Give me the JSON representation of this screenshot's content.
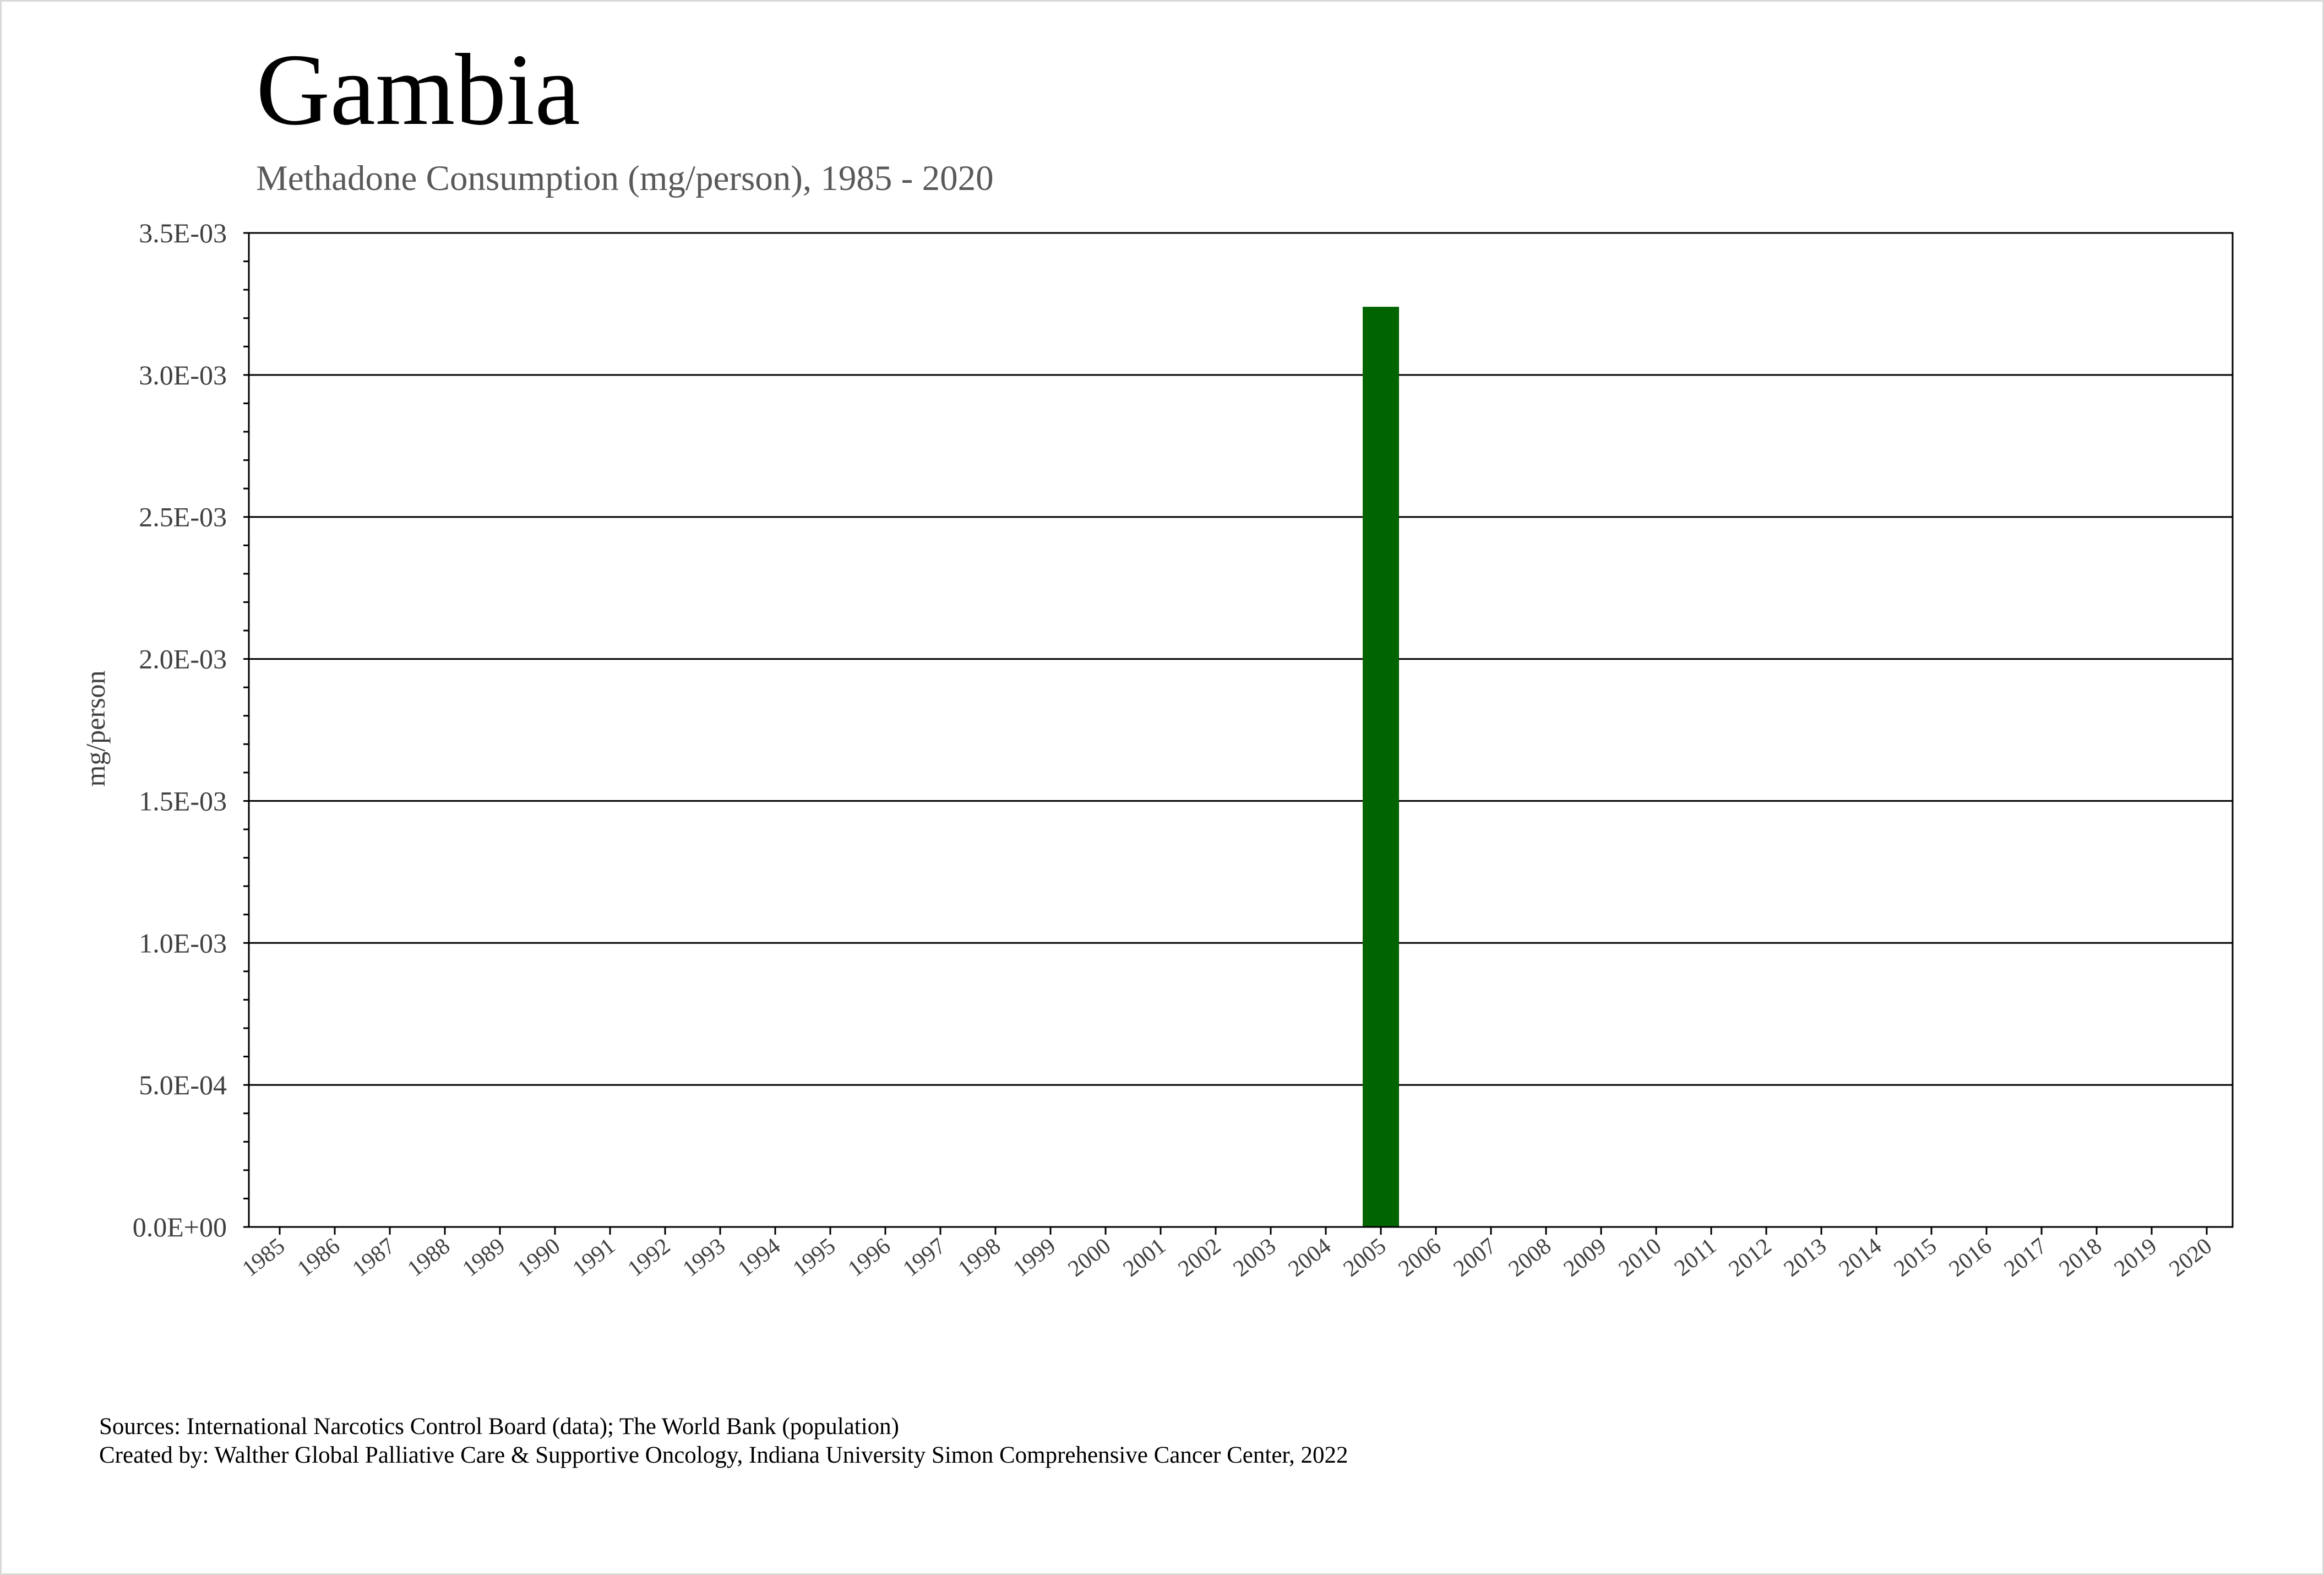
{
  "chart_data": {
    "type": "bar",
    "title": "Gambia",
    "subtitle": "Methadone Consumption (mg/person), 1985 - 2020",
    "xlabel": "",
    "ylabel": "mg/person",
    "categories": [
      "1985",
      "1986",
      "1987",
      "1988",
      "1989",
      "1990",
      "1991",
      "1992",
      "1993",
      "1994",
      "1995",
      "1996",
      "1997",
      "1998",
      "1999",
      "2000",
      "2001",
      "2002",
      "2003",
      "2004",
      "2005",
      "2006",
      "2007",
      "2008",
      "2009",
      "2010",
      "2011",
      "2012",
      "2013",
      "2014",
      "2015",
      "2016",
      "2017",
      "2018",
      "2019",
      "2020"
    ],
    "values": [
      0,
      0,
      0,
      0,
      0,
      0,
      0,
      0,
      0,
      0,
      0,
      0,
      0,
      0,
      0,
      0,
      0,
      0,
      0,
      0,
      0.00324,
      0,
      0,
      0,
      0,
      0,
      0,
      0,
      0,
      0,
      0,
      0,
      0,
      0,
      0,
      0
    ],
    "ylim": [
      0,
      0.0035
    ],
    "yticks": [
      0,
      0.0005,
      0.001,
      0.0015,
      0.002,
      0.0025,
      0.003,
      0.0035
    ],
    "ytick_labels": [
      "0.0E+00",
      "5.0E-04",
      "1.0E-03",
      "1.5E-03",
      "2.0E-03",
      "2.5E-03",
      "3.0E-03",
      "3.5E-03"
    ],
    "grid": true,
    "bar_color": "#006400",
    "legend": "none"
  },
  "footer": {
    "sources": "Sources: International Narcotics Control Board (data); The World Bank (population)",
    "created_by": "Created by: Walther Global Palliative Care & Supportive Oncology, Indiana University Simon Comprehensive Cancer Center, 2022"
  }
}
